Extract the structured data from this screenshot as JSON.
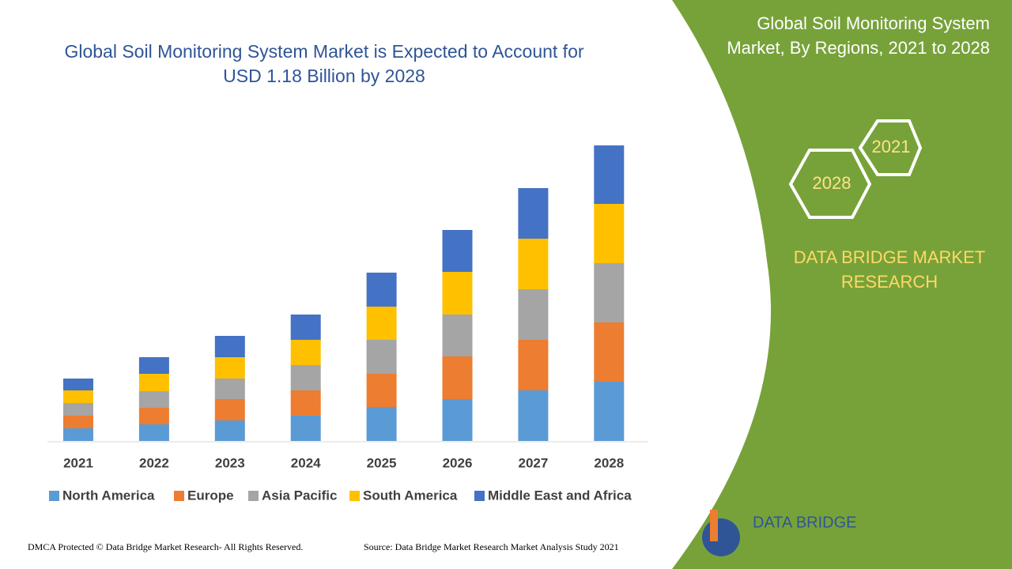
{
  "chart_data": {
    "type": "stacked-bar",
    "title": "Global Soil Monitoring System Market is Expected to Account for USD 1.18 Billion by 2028",
    "categories": [
      "2021",
      "2022",
      "2023",
      "2024",
      "2025",
      "2026",
      "2027",
      "2028"
    ],
    "series": [
      {
        "name": "North America",
        "color": "#5b9bd5",
        "values": [
          16,
          21,
          26,
          32,
          43,
          53,
          64,
          75
        ]
      },
      {
        "name": "Europe",
        "color": "#ed7d31",
        "values": [
          16,
          21,
          27,
          32,
          42,
          54,
          64,
          75
        ]
      },
      {
        "name": "Asia Pacific",
        "color": "#a5a5a5",
        "values": [
          16,
          21,
          26,
          32,
          43,
          53,
          64,
          75
        ]
      },
      {
        "name": "South America",
        "color": "#ffc000",
        "values": [
          16,
          22,
          27,
          32,
          42,
          54,
          64,
          75
        ]
      },
      {
        "name": "Middle East and Africa",
        "color": "#4472c4",
        "values": [
          15,
          21,
          27,
          32,
          43,
          53,
          64,
          74
        ]
      }
    ]
  },
  "panel": {
    "title": "Global Soil Monitoring System Market, By Regions, 2021 to 2028",
    "hex_start": "2021",
    "hex_end": "2028",
    "brand": "DATA BRIDGE MARKET RESEARCH"
  },
  "footer": {
    "copyright": "DMCA Protected © Data Bridge Market Research- All Rights Reserved.",
    "source": "Source: Data Bridge Market Research Market Analysis Study 2021",
    "logo": "DATA BRIDGE"
  }
}
